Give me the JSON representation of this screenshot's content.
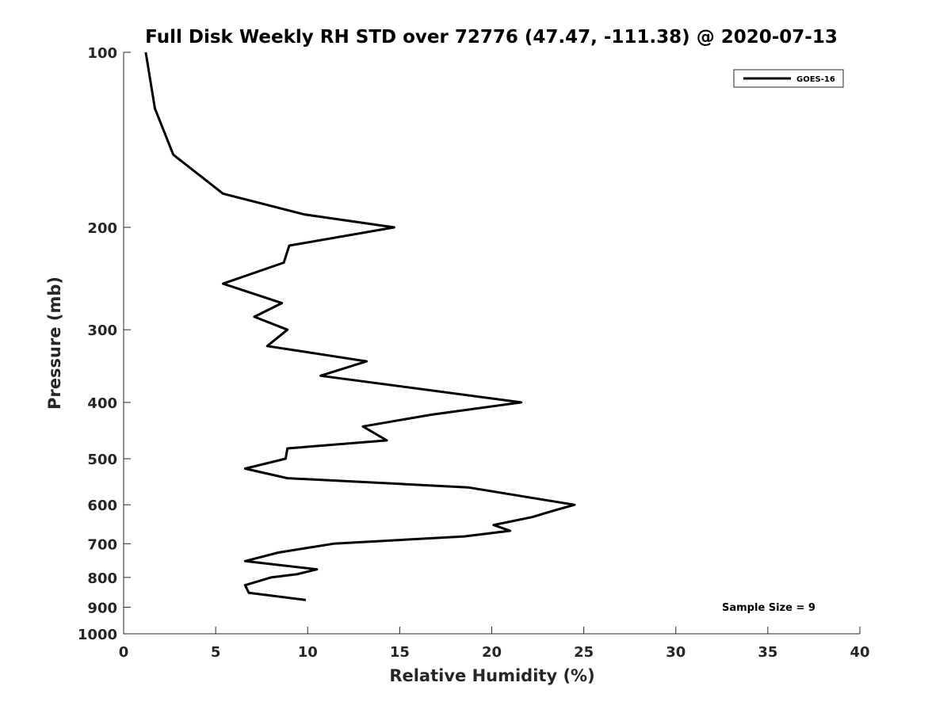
{
  "chart_data": {
    "type": "line",
    "title": "Full Disk Weekly RH STD over 72776 (47.47, -111.38) @ 2020-07-13",
    "xlabel": "Relative Humidity (%)",
    "ylabel": "Pressure (mb)",
    "xlim": [
      0,
      40
    ],
    "ylim": [
      100,
      1000
    ],
    "yscale": "log",
    "y_reversed": true,
    "grid": false,
    "xticks": [
      0,
      5,
      10,
      15,
      20,
      25,
      30,
      35,
      40
    ],
    "xtick_labels": [
      "0",
      "5",
      "10",
      "15",
      "20",
      "25",
      "30",
      "35",
      "40"
    ],
    "yticks": [
      100,
      200,
      300,
      400,
      500,
      600,
      700,
      800,
      900,
      1000
    ],
    "ytick_labels": [
      "100",
      "200",
      "300",
      "400",
      "500",
      "600",
      "700",
      "800",
      "900",
      "1000"
    ],
    "legend": {
      "position": "top-right",
      "entries": [
        "GOES-16"
      ]
    },
    "annotations": [
      "Sample Size = 9"
    ],
    "series": [
      {
        "name": "GOES-16",
        "color": "#000000",
        "x": [
          1.2,
          1.7,
          2.7,
          5.4,
          9.8,
          14.7,
          9.0,
          8.7,
          5.4,
          8.6,
          7.1,
          8.9,
          7.8,
          13.2,
          10.7,
          21.6,
          16.7,
          13.0,
          14.3,
          8.9,
          8.8,
          6.6,
          8.9,
          18.7,
          24.5,
          23.3,
          22.2,
          20.1,
          21.0,
          18.5,
          11.4,
          8.4,
          6.6,
          10.5,
          9.4,
          8.0,
          6.6,
          6.8,
          9.9
        ],
        "y": [
          100,
          125,
          150,
          175,
          190,
          200,
          215,
          230,
          250,
          270,
          285,
          300,
          320,
          340,
          360,
          400,
          420,
          440,
          465,
          480,
          500,
          520,
          540,
          560,
          600,
          615,
          630,
          650,
          665,
          680,
          700,
          725,
          750,
          775,
          790,
          800,
          825,
          850,
          875
        ]
      }
    ]
  }
}
